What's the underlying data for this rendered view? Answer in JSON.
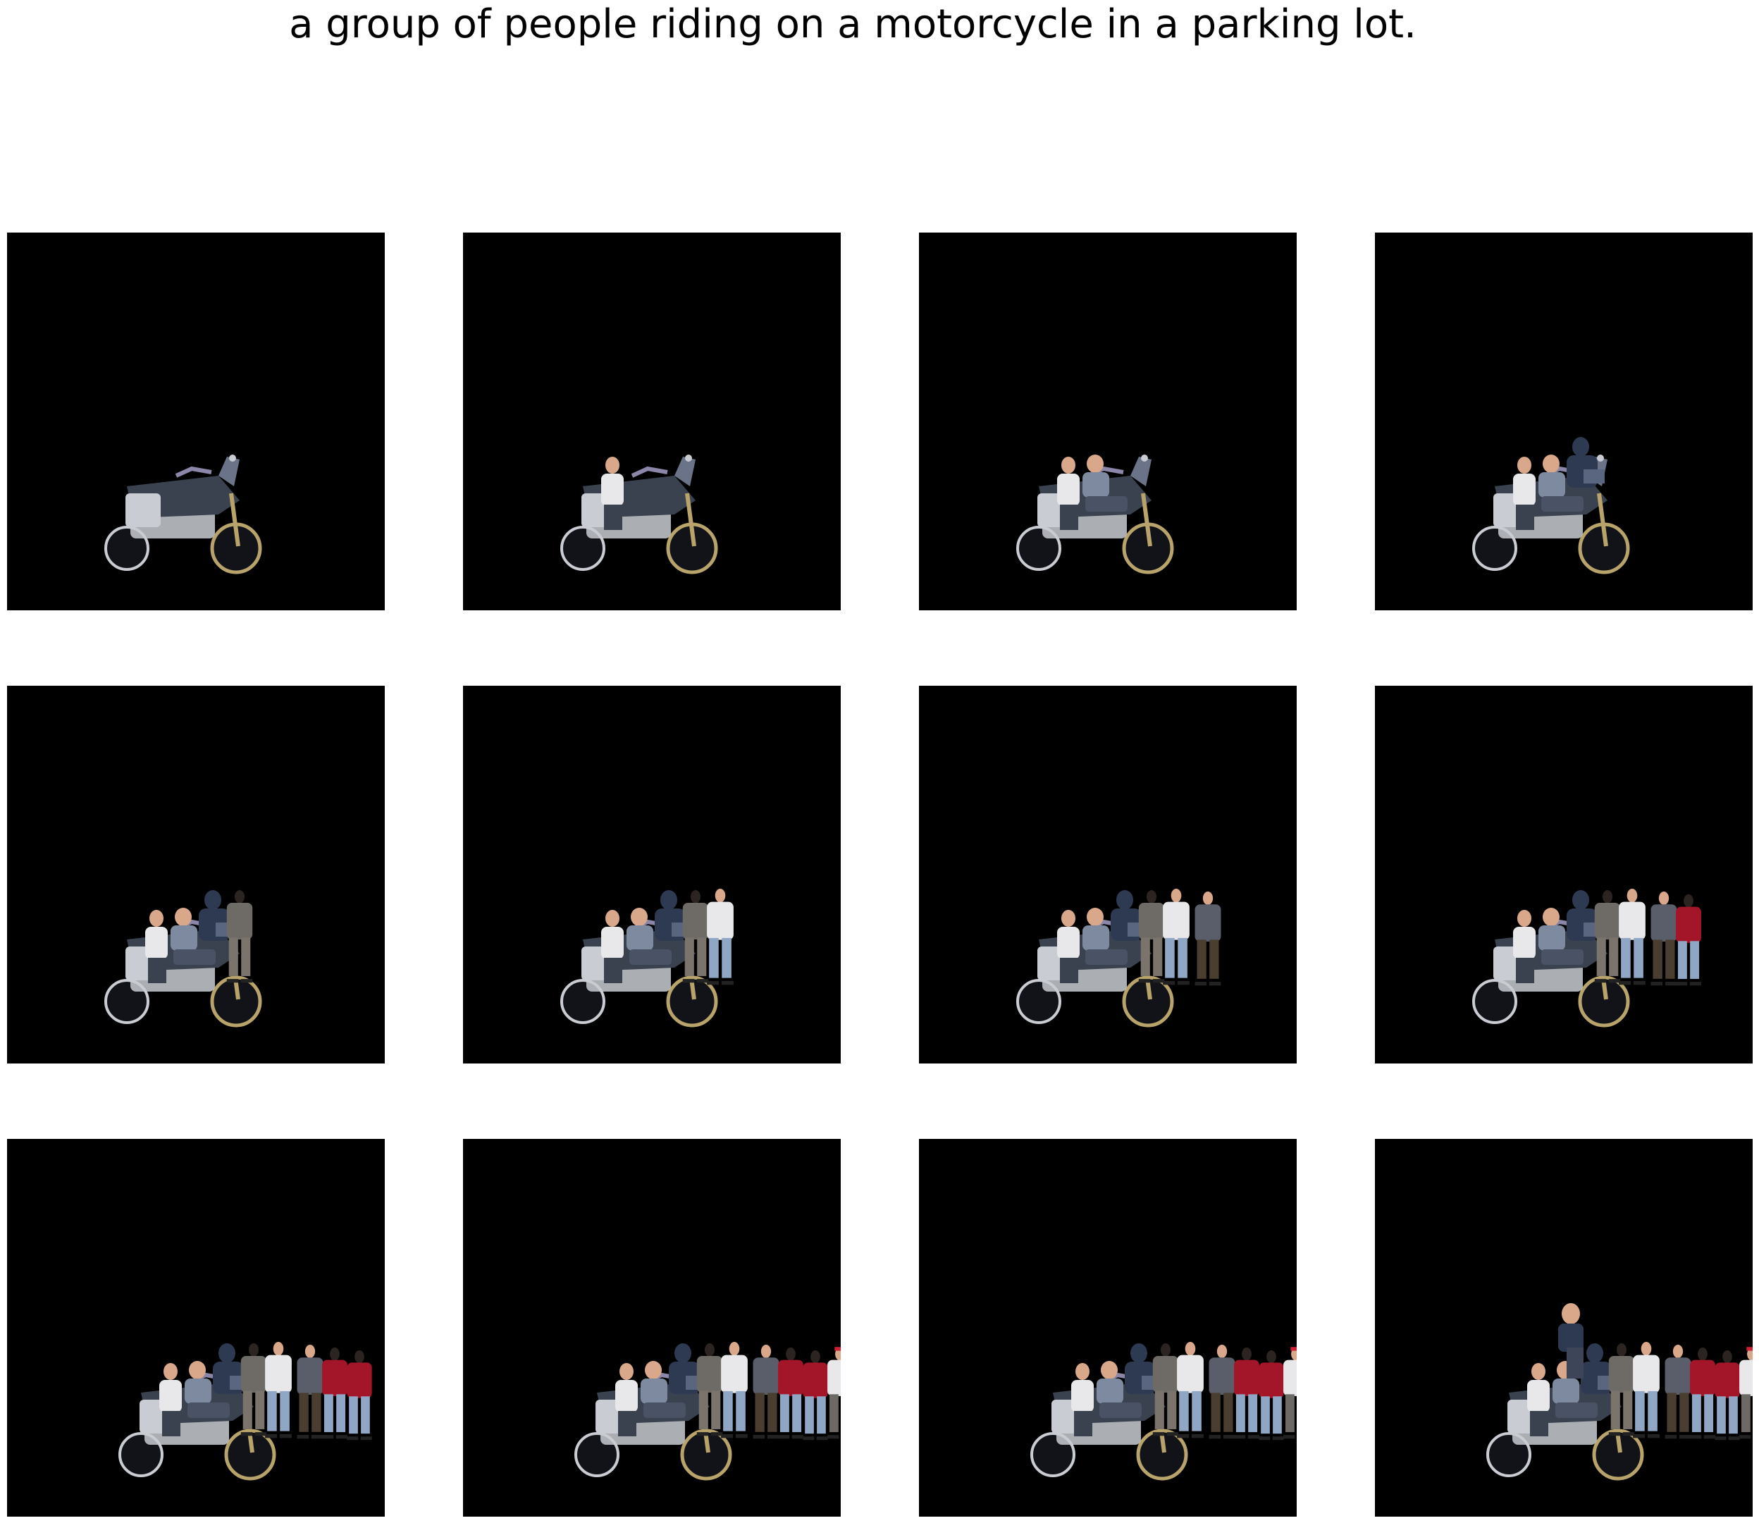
{
  "caption": "a group of people riding on a motorcycle in a parking lot.",
  "colors": {
    "background": "#ffffff",
    "panel": "#000000",
    "bike_body": "#3a4250",
    "bike_chrome": "#c9ccd2",
    "bike_tire": "#111318",
    "bike_gold": "#b8a46a",
    "skin": "#d9a88a",
    "shirt_white": "#e8e8ea",
    "shirt_blue": "#2e3a52",
    "jacket_red": "#a3162a",
    "jeans": "#8fa6c4",
    "coat_gray": "#5a5d6a",
    "hair_dark": "#2b2420",
    "cap_red": "#cc2233",
    "statue_bronze": "#6b6a5c"
  },
  "panels": [
    {
      "frame": 1,
      "layers": [
        "bike"
      ]
    },
    {
      "frame": 2,
      "layers": [
        "bike",
        "rider1"
      ]
    },
    {
      "frame": 3,
      "layers": [
        "bike",
        "rider1",
        "rider2"
      ]
    },
    {
      "frame": 4,
      "layers": [
        "bike",
        "rider1",
        "rider2",
        "rider3"
      ]
    },
    {
      "frame": 5,
      "layers": [
        "bike",
        "rider1",
        "rider2",
        "rider3",
        "p1"
      ]
    },
    {
      "frame": 6,
      "layers": [
        "bike",
        "rider1",
        "rider2",
        "rider3",
        "p1",
        "p2"
      ]
    },
    {
      "frame": 7,
      "layers": [
        "bike",
        "rider1",
        "rider2",
        "rider3",
        "p1",
        "p2",
        "p3"
      ]
    },
    {
      "frame": 8,
      "layers": [
        "bike",
        "rider1",
        "rider2",
        "rider3",
        "p1",
        "p2",
        "p3",
        "p4"
      ]
    },
    {
      "frame": 9,
      "layers": [
        "bike",
        "rider1",
        "rider2",
        "rider3",
        "p1",
        "p2",
        "p3",
        "p4",
        "p5"
      ]
    },
    {
      "frame": 10,
      "layers": [
        "bike",
        "rider1",
        "rider2",
        "rider3",
        "p1",
        "p2",
        "p3",
        "p4",
        "p5",
        "p6"
      ]
    },
    {
      "frame": 11,
      "layers": [
        "bike",
        "rider1",
        "rider2",
        "rider3",
        "p1",
        "p2",
        "p3",
        "p4",
        "p5",
        "p6",
        "p7"
      ]
    },
    {
      "frame": 12,
      "layers": [
        "bike",
        "rider1",
        "rider2",
        "rider3",
        "p1",
        "p2",
        "p3",
        "p4",
        "p5",
        "p6",
        "p7",
        "p8"
      ]
    }
  ]
}
